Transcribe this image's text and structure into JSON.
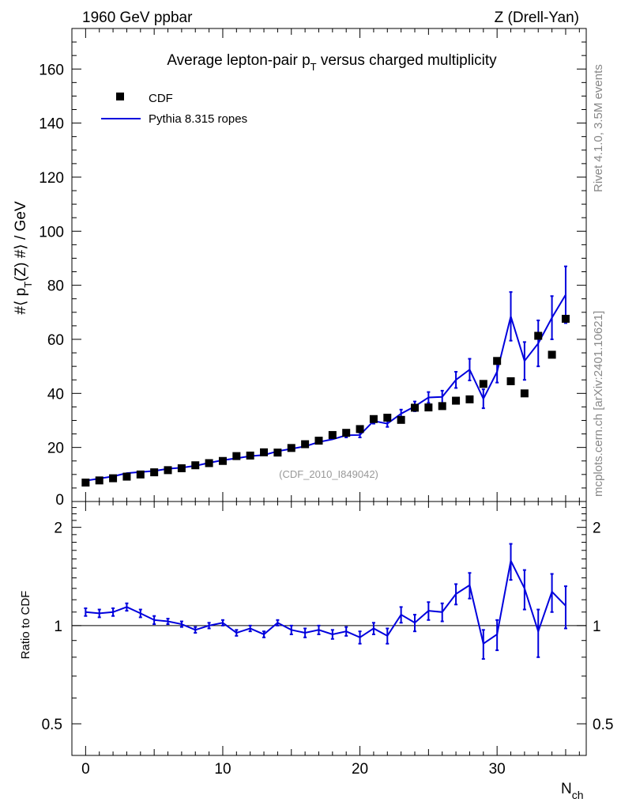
{
  "header": {
    "left": "1960 GeV ppbar",
    "right": "Z (Drell-Yan)",
    "side_rivet": "Rivet 4.1.0,  3.5M events",
    "side_mcplots": "mcplots.cern.ch [arXiv:2401.10621]"
  },
  "chart_data": [
    {
      "type": "scatter",
      "title": "Average lepton-pair p_T versus charged multiplicity",
      "title_parts": {
        "pre": "Average lepton-pair p",
        "sub": "T",
        "post": " versus charged multiplicity"
      },
      "ylabel_parts": {
        "pre": "#⟨ p",
        "sub": "T",
        "post": "(Z) #⟩ / GeV"
      },
      "xlabel": "N",
      "xlabel_sub": "ch",
      "analysis_label": "(CDF_2010_I849042)",
      "xlim": [
        -1,
        36.5
      ],
      "ylim": [
        0,
        175
      ],
      "yticks": [
        0,
        20,
        40,
        60,
        80,
        100,
        120,
        140,
        160
      ],
      "xticks": [
        0,
        10,
        20,
        30
      ],
      "colors": {
        "data": "#000000",
        "mc": "#0000dd"
      },
      "x": [
        0,
        1,
        2,
        3,
        4,
        5,
        6,
        7,
        8,
        9,
        10,
        11,
        12,
        13,
        14,
        15,
        16,
        17,
        18,
        19,
        20,
        21,
        22,
        23,
        24,
        25,
        26,
        27,
        28,
        29,
        30,
        31,
        32,
        33,
        34,
        35
      ],
      "series": [
        {
          "name": "CDF",
          "style": "markers",
          "values": [
            7.0,
            7.8,
            8.6,
            9.2,
            10.0,
            10.8,
            11.6,
            12.3,
            13.4,
            14.2,
            15.0,
            16.8,
            17.0,
            18.2,
            18.1,
            19.8,
            21.2,
            22.5,
            24.6,
            25.4,
            26.8,
            30.5,
            31.0,
            30.2,
            34.7,
            34.8,
            35.3,
            37.3,
            37.8,
            43.5,
            52.0,
            44.5,
            40.0,
            61.3,
            54.3,
            67.6
          ]
        },
        {
          "name": "Pythia 8.315 ropes",
          "style": "line",
          "values": [
            7.7,
            8.5,
            9.3,
            10.5,
            10.9,
            11.3,
            12.1,
            12.5,
            13.2,
            14.3,
            15.3,
            16.0,
            16.8,
            17.2,
            18.6,
            19.5,
            20.4,
            22.0,
            23.0,
            24.5,
            24.6,
            29.8,
            28.8,
            32.5,
            35.2,
            38.5,
            38.7,
            45.0,
            48.8,
            38.0,
            48.0,
            68.5,
            52.0,
            58.5,
            68.0,
            76.5
          ],
          "errors": [
            0.3,
            0.3,
            0.3,
            0.3,
            0.3,
            0.3,
            0.3,
            0.3,
            0.4,
            0.4,
            0.4,
            0.4,
            0.5,
            0.5,
            0.5,
            0.6,
            0.6,
            0.7,
            0.7,
            0.8,
            0.9,
            1.0,
            1.2,
            1.5,
            1.8,
            2.0,
            2.3,
            3.0,
            4.0,
            3.5,
            4.0,
            9.0,
            7.0,
            8.5,
            8.0,
            10.5
          ]
        }
      ]
    },
    {
      "type": "line",
      "ylabel": "Ratio to CDF",
      "ylim": [
        0.4,
        2.4
      ],
      "yscale": "log",
      "yticks": [
        0.5,
        1,
        2
      ],
      "ytick_labels": [
        "0.5",
        "1",
        "2"
      ],
      "xticks": [
        0,
        10,
        20,
        30
      ],
      "xtick_labels": [
        "0",
        "10",
        "20",
        "30"
      ],
      "reference_line": 1,
      "series": [
        {
          "name": "Pythia 8.315 ropes / CDF",
          "values": [
            1.1,
            1.09,
            1.1,
            1.14,
            1.09,
            1.04,
            1.03,
            1.01,
            0.97,
            1.0,
            1.02,
            0.95,
            0.98,
            0.94,
            1.02,
            0.97,
            0.95,
            0.97,
            0.94,
            0.96,
            0.92,
            0.98,
            0.93,
            1.08,
            1.02,
            1.11,
            1.1,
            1.25,
            1.33,
            0.88,
            0.94,
            1.58,
            1.3,
            0.96,
            1.27,
            1.15
          ],
          "errors": [
            0.03,
            0.03,
            0.03,
            0.03,
            0.03,
            0.03,
            0.02,
            0.02,
            0.02,
            0.02,
            0.02,
            0.02,
            0.02,
            0.02,
            0.02,
            0.03,
            0.03,
            0.03,
            0.03,
            0.03,
            0.04,
            0.04,
            0.05,
            0.06,
            0.06,
            0.07,
            0.07,
            0.09,
            0.12,
            0.09,
            0.1,
            0.2,
            0.18,
            0.16,
            0.17,
            0.17
          ]
        }
      ]
    }
  ]
}
